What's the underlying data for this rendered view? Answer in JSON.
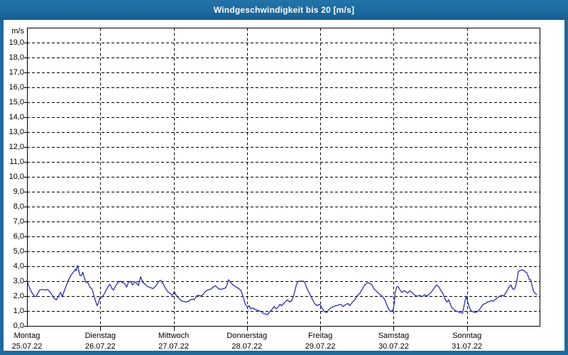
{
  "window": {
    "title": "Windgeschwindigkeit bis 20 [m/s]"
  },
  "colors": {
    "chrome_blue": "#1c6a9f",
    "series_blue": "#2d2daa",
    "plot_border": "#000000",
    "grid": "#000000",
    "background": "#ffffff",
    "text": "#000000",
    "title_text": "#ffffff"
  },
  "chart_data": {
    "type": "line",
    "title": "Windgeschwindigkeit bis 20 [m/s]",
    "y_unit": "m/s",
    "xlabel": "",
    "ylabel": "m/s",
    "ylim": [
      0,
      20
    ],
    "y_tick_interval": 1.0,
    "grid": "dashed",
    "legend": "none",
    "y_tick_labels": [
      "19,0",
      "18,0",
      "17,0",
      "16,0",
      "15,0",
      "14,0",
      "13,0",
      "12,0",
      "11,0",
      "10,0",
      "9,0",
      "8,0",
      "7,0",
      "6,0",
      "5,0",
      "4,0",
      "3,0",
      "2,0",
      "1,0",
      "0,0"
    ],
    "x_days": [
      {
        "name": "Montag",
        "date": "25.07.22"
      },
      {
        "name": "Dienstag",
        "date": "26.07.22"
      },
      {
        "name": "Mittwoch",
        "date": "27.07.22"
      },
      {
        "name": "Donnerstag",
        "date": "28.07.22"
      },
      {
        "name": "Freitag",
        "date": "29.07.22"
      },
      {
        "name": "Samstag",
        "date": "30.07.22"
      },
      {
        "name": "Sonntag",
        "date": "31.07.22"
      }
    ],
    "series": [
      {
        "name": "Windgeschwindigkeit",
        "color": "#2d2daa",
        "x_unit": "days_from_start",
        "points": [
          [
            0.0,
            3.05
          ],
          [
            0.03,
            2.6
          ],
          [
            0.07,
            2.2
          ],
          [
            0.1,
            2.0
          ],
          [
            0.12,
            1.95
          ],
          [
            0.15,
            2.2
          ],
          [
            0.17,
            2.4
          ],
          [
            0.21,
            2.45
          ],
          [
            0.25,
            2.4
          ],
          [
            0.28,
            2.45
          ],
          [
            0.31,
            2.3
          ],
          [
            0.34,
            2.1
          ],
          [
            0.37,
            1.85
          ],
          [
            0.4,
            1.75
          ],
          [
            0.43,
            2.0
          ],
          [
            0.46,
            2.25
          ],
          [
            0.48,
            1.95
          ],
          [
            0.52,
            2.5
          ],
          [
            0.56,
            3.0
          ],
          [
            0.6,
            3.4
          ],
          [
            0.64,
            3.65
          ],
          [
            0.66,
            3.8
          ],
          [
            0.67,
            3.7
          ],
          [
            0.69,
            4.05
          ],
          [
            0.72,
            3.4
          ],
          [
            0.74,
            3.35
          ],
          [
            0.76,
            3.6
          ],
          [
            0.8,
            2.95
          ],
          [
            0.83,
            2.9
          ],
          [
            0.86,
            2.6
          ],
          [
            0.89,
            2.45
          ],
          [
            0.92,
            1.9
          ],
          [
            0.95,
            1.45
          ],
          [
            0.96,
            1.35
          ],
          [
            0.99,
            1.8
          ],
          [
            1.0,
            1.95
          ],
          [
            1.02,
            1.9
          ],
          [
            1.06,
            2.2
          ],
          [
            1.09,
            2.5
          ],
          [
            1.13,
            2.8
          ],
          [
            1.16,
            2.5
          ],
          [
            1.18,
            2.4
          ],
          [
            1.21,
            2.7
          ],
          [
            1.24,
            2.9
          ],
          [
            1.27,
            3.0
          ],
          [
            1.3,
            2.9
          ],
          [
            1.33,
            2.85
          ],
          [
            1.36,
            2.6
          ],
          [
            1.38,
            2.9
          ],
          [
            1.41,
            3.0
          ],
          [
            1.44,
            2.75
          ],
          [
            1.47,
            2.95
          ],
          [
            1.5,
            2.85
          ],
          [
            1.52,
            2.7
          ],
          [
            1.55,
            3.3
          ],
          [
            1.58,
            2.9
          ],
          [
            1.61,
            2.8
          ],
          [
            1.64,
            2.65
          ],
          [
            1.67,
            2.6
          ],
          [
            1.69,
            2.55
          ],
          [
            1.72,
            2.5
          ],
          [
            1.76,
            2.7
          ],
          [
            1.8,
            3.0
          ],
          [
            1.82,
            3.05
          ],
          [
            1.86,
            2.8
          ],
          [
            1.89,
            2.5
          ],
          [
            1.92,
            2.3
          ],
          [
            1.96,
            2.15
          ],
          [
            1.98,
            2.05
          ],
          [
            2.01,
            2.3
          ],
          [
            2.04,
            2.0
          ],
          [
            2.07,
            1.85
          ],
          [
            2.1,
            1.7
          ],
          [
            2.13,
            1.65
          ],
          [
            2.17,
            1.6
          ],
          [
            2.2,
            1.65
          ],
          [
            2.23,
            1.75
          ],
          [
            2.26,
            1.8
          ],
          [
            2.28,
            1.75
          ],
          [
            2.31,
            2.0
          ],
          [
            2.34,
            2.05
          ],
          [
            2.37,
            2.0
          ],
          [
            2.4,
            2.1
          ],
          [
            2.43,
            2.3
          ],
          [
            2.46,
            2.4
          ],
          [
            2.5,
            2.45
          ],
          [
            2.54,
            2.6
          ],
          [
            2.57,
            2.7
          ],
          [
            2.59,
            2.6
          ],
          [
            2.61,
            2.5
          ],
          [
            2.64,
            2.45
          ],
          [
            2.68,
            2.5
          ],
          [
            2.71,
            2.55
          ],
          [
            2.73,
            2.8
          ],
          [
            2.75,
            3.1
          ],
          [
            2.78,
            2.9
          ],
          [
            2.81,
            2.75
          ],
          [
            2.84,
            2.65
          ],
          [
            2.87,
            2.55
          ],
          [
            2.89,
            2.5
          ],
          [
            2.92,
            2.35
          ],
          [
            2.95,
            1.9
          ],
          [
            2.98,
            1.4
          ],
          [
            3.01,
            1.25
          ],
          [
            3.03,
            1.35
          ],
          [
            3.05,
            1.15
          ],
          [
            3.08,
            1.2
          ],
          [
            3.11,
            1.1
          ],
          [
            3.14,
            1.05
          ],
          [
            3.17,
            1.0
          ],
          [
            3.2,
            0.95
          ],
          [
            3.22,
            0.85
          ],
          [
            3.25,
            0.8
          ],
          [
            3.28,
            0.75
          ],
          [
            3.31,
            0.95
          ],
          [
            3.34,
            1.1
          ],
          [
            3.37,
            1.3
          ],
          [
            3.4,
            1.15
          ],
          [
            3.43,
            1.3
          ],
          [
            3.45,
            1.45
          ],
          [
            3.47,
            1.35
          ],
          [
            3.5,
            1.5
          ],
          [
            3.52,
            1.6
          ],
          [
            3.55,
            1.75
          ],
          [
            3.58,
            1.6
          ],
          [
            3.61,
            1.7
          ],
          [
            3.64,
            2.1
          ],
          [
            3.67,
            2.7
          ],
          [
            3.69,
            2.95
          ],
          [
            3.71,
            3.0
          ],
          [
            3.74,
            3.0
          ],
          [
            3.77,
            3.0
          ],
          [
            3.79,
            2.9
          ],
          [
            3.81,
            2.6
          ],
          [
            3.84,
            2.3
          ],
          [
            3.87,
            2.0
          ],
          [
            3.9,
            1.7
          ],
          [
            3.93,
            1.45
          ],
          [
            3.96,
            1.35
          ],
          [
            3.98,
            1.45
          ],
          [
            4.0,
            1.4
          ],
          [
            4.03,
            1.15
          ],
          [
            4.06,
            0.95
          ],
          [
            4.09,
            0.9
          ],
          [
            4.11,
            1.05
          ],
          [
            4.14,
            1.2
          ],
          [
            4.18,
            1.3
          ],
          [
            4.21,
            1.35
          ],
          [
            4.25,
            1.4
          ],
          [
            4.28,
            1.45
          ],
          [
            4.31,
            1.3
          ],
          [
            4.35,
            1.45
          ],
          [
            4.38,
            1.5
          ],
          [
            4.4,
            1.35
          ],
          [
            4.44,
            1.6
          ],
          [
            4.47,
            1.75
          ],
          [
            4.5,
            2.0
          ],
          [
            4.54,
            2.2
          ],
          [
            4.57,
            2.45
          ],
          [
            4.6,
            2.7
          ],
          [
            4.63,
            2.85
          ],
          [
            4.65,
            2.9
          ],
          [
            4.68,
            2.85
          ],
          [
            4.71,
            2.7
          ],
          [
            4.73,
            2.5
          ],
          [
            4.76,
            2.35
          ],
          [
            4.79,
            2.2
          ],
          [
            4.83,
            2.05
          ],
          [
            4.86,
            1.9
          ],
          [
            4.88,
            1.75
          ],
          [
            4.9,
            1.5
          ],
          [
            4.92,
            1.25
          ],
          [
            4.94,
            1.05
          ],
          [
            4.96,
            0.95
          ],
          [
            4.98,
            1.05
          ],
          [
            4.99,
            0.95
          ],
          [
            5.01,
            1.6
          ],
          [
            5.02,
            2.2
          ],
          [
            5.04,
            2.6
          ],
          [
            5.06,
            2.65
          ],
          [
            5.09,
            2.4
          ],
          [
            5.11,
            2.25
          ],
          [
            5.14,
            2.35
          ],
          [
            5.17,
            2.3
          ],
          [
            5.19,
            2.2
          ],
          [
            5.22,
            2.35
          ],
          [
            5.25,
            2.25
          ],
          [
            5.28,
            2.1
          ],
          [
            5.31,
            2.0
          ],
          [
            5.33,
            2.0
          ],
          [
            5.36,
            2.05
          ],
          [
            5.39,
            1.95
          ],
          [
            5.42,
            2.1
          ],
          [
            5.45,
            2.0
          ],
          [
            5.48,
            2.1
          ],
          [
            5.51,
            2.25
          ],
          [
            5.54,
            2.45
          ],
          [
            5.57,
            2.65
          ],
          [
            5.59,
            2.75
          ],
          [
            5.62,
            2.6
          ],
          [
            5.64,
            2.4
          ],
          [
            5.67,
            2.2
          ],
          [
            5.7,
            1.8
          ],
          [
            5.73,
            1.6
          ],
          [
            5.75,
            1.75
          ],
          [
            5.77,
            1.5
          ],
          [
            5.79,
            1.25
          ],
          [
            5.82,
            1.1
          ],
          [
            5.85,
            1.0
          ],
          [
            5.88,
            0.95
          ],
          [
            5.91,
            0.9
          ],
          [
            5.94,
            0.85
          ],
          [
            5.95,
            1.1
          ],
          [
            5.97,
            1.6
          ],
          [
            5.99,
            2.0
          ],
          [
            6.01,
            1.6
          ],
          [
            6.03,
            1.3
          ],
          [
            6.05,
            1.05
          ],
          [
            6.08,
            0.95
          ],
          [
            6.11,
            0.9
          ],
          [
            6.14,
            0.95
          ],
          [
            6.17,
            1.1
          ],
          [
            6.2,
            1.3
          ],
          [
            6.22,
            1.45
          ],
          [
            6.25,
            1.5
          ],
          [
            6.28,
            1.6
          ],
          [
            6.31,
            1.65
          ],
          [
            6.34,
            1.7
          ],
          [
            6.36,
            1.65
          ],
          [
            6.39,
            1.8
          ],
          [
            6.42,
            1.9
          ],
          [
            6.45,
            2.0
          ],
          [
            6.48,
            2.05
          ],
          [
            6.5,
            2.0
          ],
          [
            6.52,
            2.15
          ],
          [
            6.54,
            2.3
          ],
          [
            6.56,
            2.5
          ],
          [
            6.58,
            2.65
          ],
          [
            6.6,
            2.75
          ],
          [
            6.62,
            2.5
          ],
          [
            6.64,
            2.45
          ],
          [
            6.66,
            2.6
          ],
          [
            6.68,
            3.0
          ],
          [
            6.7,
            3.65
          ],
          [
            6.72,
            3.7
          ],
          [
            6.74,
            3.75
          ],
          [
            6.76,
            3.75
          ],
          [
            6.78,
            3.7
          ],
          [
            6.8,
            3.6
          ],
          [
            6.82,
            3.55
          ],
          [
            6.85,
            3.1
          ],
          [
            6.87,
            3.1
          ],
          [
            6.89,
            2.65
          ],
          [
            6.91,
            2.3
          ],
          [
            6.94,
            2.15
          ],
          [
            6.95,
            2.1
          ]
        ]
      }
    ]
  }
}
